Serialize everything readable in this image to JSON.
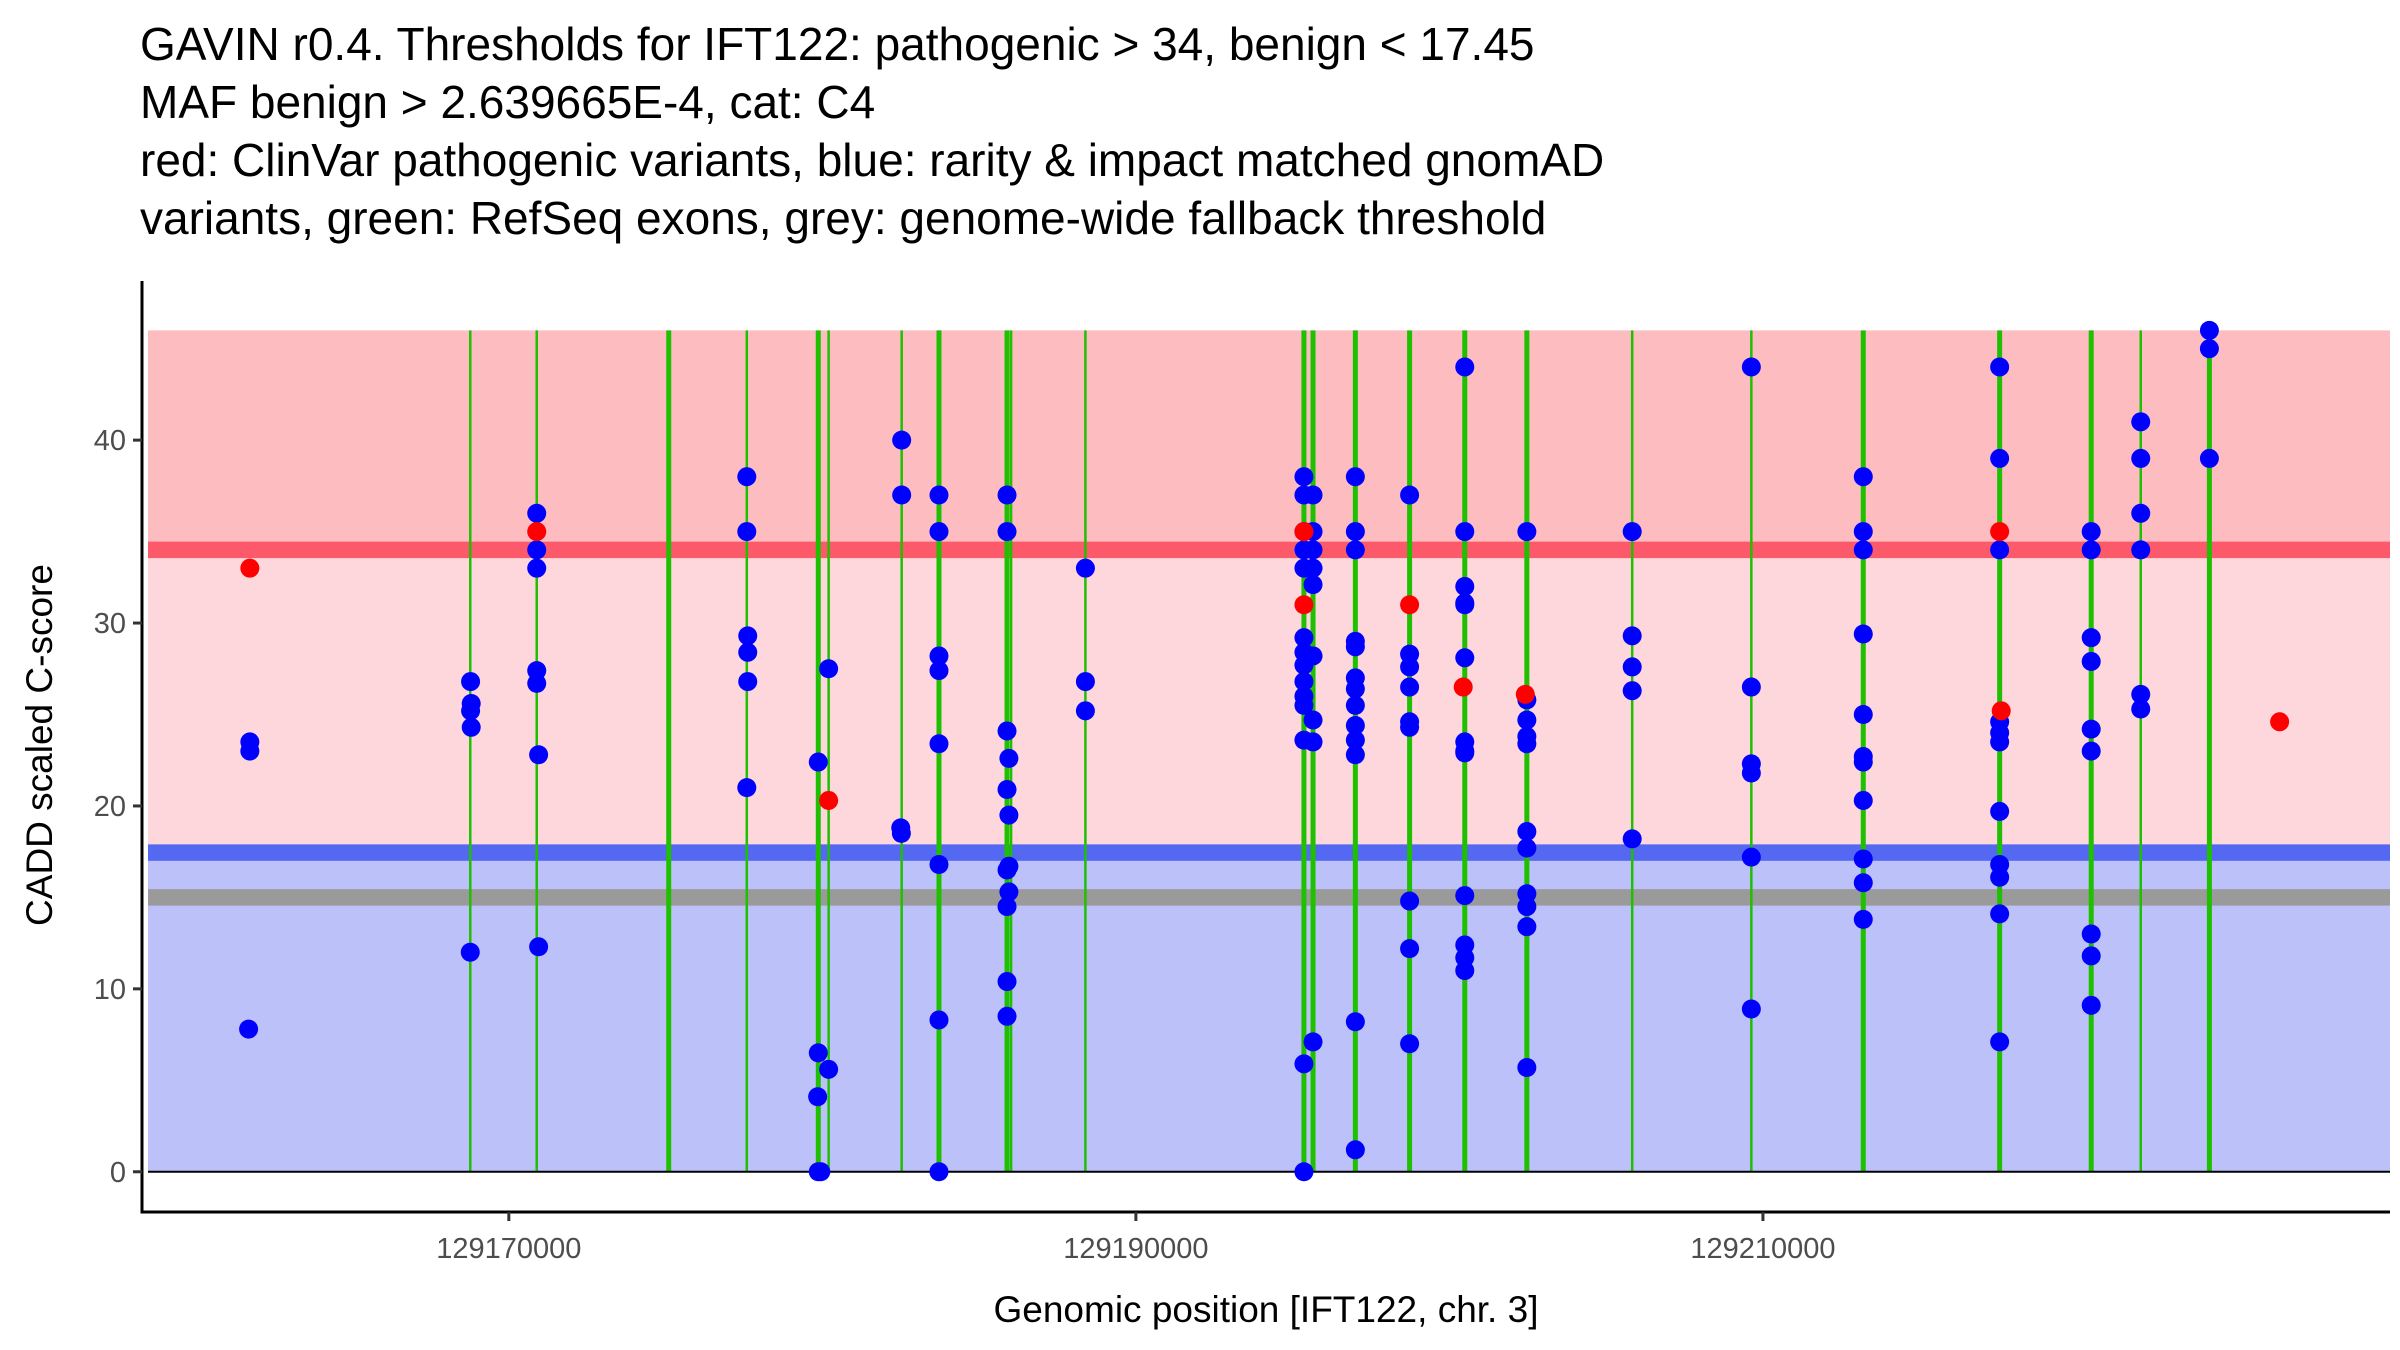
{
  "chart_data": {
    "type": "scatter",
    "title_lines": [
      "GAVIN r0.4. Thresholds for IFT122: pathogenic > 34, benign < 17.45",
      "MAF benign > 2.639665E-4, cat: C4",
      "red: ClinVar pathogenic variants, blue: rarity & impact matched gnomAD",
      "variants, green: RefSeq exons, grey: genome-wide fallback threshold"
    ],
    "xlabel": "Genomic position [IFT122, chr. 3]",
    "ylabel": "CADD scaled C-score",
    "xlim": [
      129158300,
      129230000
    ],
    "ylim": [
      -2.2,
      48.7
    ],
    "x_ticks": [
      129170000,
      129190000,
      129210000
    ],
    "x_tick_labels": [
      "129170000",
      "129190000",
      "129210000"
    ],
    "y_ticks": [
      0,
      10,
      20,
      30,
      40
    ],
    "y_tick_labels": [
      "0",
      "10",
      "20",
      "30",
      "40"
    ],
    "grid": false,
    "legend": "none",
    "colors": {
      "pathogenic_region": "#fcbcc0",
      "intermediate_region": "#fdd7db",
      "benign_region": "#bcc2f9",
      "pathogenic_threshold_line": "#fc5a6a",
      "benign_threshold_line": "#5468f2",
      "fallback_threshold_line": "#9a9a9a",
      "exon_line": "#1ec000",
      "clinvar_point": "#ff0000",
      "gnomad_point": "#0000ff"
    },
    "regions": [
      {
        "name": "pathogenic",
        "ymin": 34,
        "ymax": 46
      },
      {
        "name": "intermediate",
        "ymin": 17.45,
        "ymax": 34
      },
      {
        "name": "benign",
        "ymin": 0,
        "ymax": 17.45
      }
    ],
    "thresholds": {
      "pathogenic": 34,
      "benign": 17.45,
      "fallback": 15
    },
    "exons": [
      {
        "pos": 129168770,
        "thick": false
      },
      {
        "pos": 129170890,
        "thick": false
      },
      {
        "pos": 129175100,
        "thick": true
      },
      {
        "pos": 129177590,
        "thick": false
      },
      {
        "pos": 129179870,
        "thick": true
      },
      {
        "pos": 129180200,
        "thick": false
      },
      {
        "pos": 129182530,
        "thick": false
      },
      {
        "pos": 129183720,
        "thick": true
      },
      {
        "pos": 129185890,
        "thick": true
      },
      {
        "pos": 129186020,
        "thick": false
      },
      {
        "pos": 129188390,
        "thick": false
      },
      {
        "pos": 129195360,
        "thick": true
      },
      {
        "pos": 129195650,
        "thick": true
      },
      {
        "pos": 129197000,
        "thick": true
      },
      {
        "pos": 129198730,
        "thick": true
      },
      {
        "pos": 129200490,
        "thick": true
      },
      {
        "pos": 129202470,
        "thick": true
      },
      {
        "pos": 129205830,
        "thick": false
      },
      {
        "pos": 129209630,
        "thick": false
      },
      {
        "pos": 129213200,
        "thick": true
      },
      {
        "pos": 129217550,
        "thick": true
      },
      {
        "pos": 129220470,
        "thick": true
      },
      {
        "pos": 129222050,
        "thick": false
      },
      {
        "pos": 129224240,
        "thick": true
      }
    ],
    "series": [
      {
        "name": "ClinVar pathogenic variants",
        "color": "#ff0000",
        "points": [
          [
            129161740,
            33.0
          ],
          [
            129170890,
            35.0
          ],
          [
            129180200,
            20.3
          ],
          [
            129195360,
            35.0
          ],
          [
            129195360,
            31.0
          ],
          [
            129198730,
            31.0
          ],
          [
            129200440,
            26.5
          ],
          [
            129202420,
            26.1
          ],
          [
            129217550,
            35.0
          ],
          [
            129217600,
            25.2
          ],
          [
            129226480,
            24.6
          ]
        ]
      },
      {
        "name": "rarity & impact matched gnomAD variants",
        "color": "#0000ff",
        "points": [
          [
            129161740,
            23.5
          ],
          [
            129161740,
            23.0
          ],
          [
            129161700,
            7.8
          ],
          [
            129168780,
            26.8
          ],
          [
            129168800,
            25.6
          ],
          [
            129168780,
            25.2
          ],
          [
            129168800,
            24.3
          ],
          [
            129168770,
            12.0
          ],
          [
            129170890,
            36.0
          ],
          [
            129170890,
            34.0
          ],
          [
            129170890,
            33.0
          ],
          [
            129170890,
            27.4
          ],
          [
            129170890,
            26.7
          ],
          [
            129170950,
            22.8
          ],
          [
            129170950,
            12.3
          ],
          [
            129177590,
            38.0
          ],
          [
            129177590,
            35.0
          ],
          [
            129177620,
            29.3
          ],
          [
            129177620,
            28.4
          ],
          [
            129177620,
            26.8
          ],
          [
            129177590,
            21.0
          ],
          [
            129179870,
            22.4
          ],
          [
            129179870,
            6.5
          ],
          [
            129179850,
            4.1
          ],
          [
            129179870,
            0.0
          ],
          [
            129180200,
            27.5
          ],
          [
            129180200,
            5.6
          ],
          [
            129179950,
            0.0
          ],
          [
            129182530,
            40.0
          ],
          [
            129182530,
            37.0
          ],
          [
            129182500,
            18.8
          ],
          [
            129182520,
            18.5
          ],
          [
            129183720,
            37.0
          ],
          [
            129183720,
            35.0
          ],
          [
            129183720,
            28.2
          ],
          [
            129183720,
            27.4
          ],
          [
            129183720,
            23.4
          ],
          [
            129183720,
            16.8
          ],
          [
            129183720,
            8.3
          ],
          [
            129183720,
            0.0
          ],
          [
            129185890,
            37.0
          ],
          [
            129185890,
            35.0
          ],
          [
            129185890,
            24.1
          ],
          [
            129185950,
            22.6
          ],
          [
            129185890,
            20.9
          ],
          [
            129185950,
            19.5
          ],
          [
            129185950,
            16.7
          ],
          [
            129185890,
            16.5
          ],
          [
            129185950,
            15.3
          ],
          [
            129185890,
            14.5
          ],
          [
            129185890,
            10.4
          ],
          [
            129185890,
            8.5
          ],
          [
            129188390,
            33.0
          ],
          [
            129188390,
            26.8
          ],
          [
            129188390,
            25.2
          ],
          [
            129195360,
            38.0
          ],
          [
            129195360,
            37.0
          ],
          [
            129195360,
            35.0
          ],
          [
            129195360,
            34.0
          ],
          [
            129195360,
            33.0
          ],
          [
            129195360,
            29.2
          ],
          [
            129195360,
            28.4
          ],
          [
            129195360,
            27.7
          ],
          [
            129195360,
            26.8
          ],
          [
            129195360,
            26.0
          ],
          [
            129195360,
            25.5
          ],
          [
            129195360,
            23.6
          ],
          [
            129195360,
            5.9
          ],
          [
            129195360,
            0.0
          ],
          [
            129195650,
            37.0
          ],
          [
            129195650,
            35.0
          ],
          [
            129195650,
            34.0
          ],
          [
            129195650,
            33.0
          ],
          [
            129195650,
            32.1
          ],
          [
            129195650,
            28.2
          ],
          [
            129195650,
            24.7
          ],
          [
            129195650,
            23.5
          ],
          [
            129195650,
            7.1
          ],
          [
            129197000,
            38.0
          ],
          [
            129197000,
            35.0
          ],
          [
            129197000,
            34.0
          ],
          [
            129197000,
            29.0
          ],
          [
            129197000,
            28.7
          ],
          [
            129197000,
            27.0
          ],
          [
            129197000,
            26.4
          ],
          [
            129197000,
            25.5
          ],
          [
            129197000,
            24.4
          ],
          [
            129197000,
            23.6
          ],
          [
            129197000,
            22.8
          ],
          [
            129197000,
            8.2
          ],
          [
            129197000,
            1.2
          ],
          [
            129198730,
            37.0
          ],
          [
            129198730,
            28.3
          ],
          [
            129198730,
            27.6
          ],
          [
            129198730,
            26.5
          ],
          [
            129198730,
            24.6
          ],
          [
            129198730,
            24.3
          ],
          [
            129198730,
            14.8
          ],
          [
            129198730,
            12.2
          ],
          [
            129198730,
            7.0
          ],
          [
            129200490,
            44.0
          ],
          [
            129200490,
            35.0
          ],
          [
            129200490,
            32.0
          ],
          [
            129200490,
            31.1
          ],
          [
            129200490,
            31.0
          ],
          [
            129200490,
            28.1
          ],
          [
            129200490,
            23.5
          ],
          [
            129200490,
            23.0
          ],
          [
            129200490,
            22.9
          ],
          [
            129200490,
            15.1
          ],
          [
            129200490,
            12.4
          ],
          [
            129200490,
            11.7
          ],
          [
            129200490,
            11.0
          ],
          [
            129202470,
            35.0
          ],
          [
            129202470,
            25.8
          ],
          [
            129202470,
            24.7
          ],
          [
            129202470,
            23.8
          ],
          [
            129202470,
            23.4
          ],
          [
            129202470,
            18.6
          ],
          [
            129202470,
            17.7
          ],
          [
            129202470,
            15.2
          ],
          [
            129202470,
            14.5
          ],
          [
            129202470,
            13.4
          ],
          [
            129202470,
            5.7
          ],
          [
            129205830,
            35.0
          ],
          [
            129205830,
            29.3
          ],
          [
            129205830,
            27.6
          ],
          [
            129205830,
            26.3
          ],
          [
            129205830,
            18.2
          ],
          [
            129209630,
            44.0
          ],
          [
            129209630,
            26.5
          ],
          [
            129209630,
            22.3
          ],
          [
            129209630,
            21.8
          ],
          [
            129209630,
            17.2
          ],
          [
            129209630,
            8.9
          ],
          [
            129213200,
            38.0
          ],
          [
            129213200,
            35.0
          ],
          [
            129213200,
            34.0
          ],
          [
            129213200,
            29.4
          ],
          [
            129213200,
            25.0
          ],
          [
            129213200,
            22.7
          ],
          [
            129213200,
            22.4
          ],
          [
            129213200,
            20.3
          ],
          [
            129213200,
            17.1
          ],
          [
            129213200,
            15.8
          ],
          [
            129213200,
            13.8
          ],
          [
            129217550,
            44.0
          ],
          [
            129217550,
            39.0
          ],
          [
            129217550,
            34.0
          ],
          [
            129217550,
            24.6
          ],
          [
            129217550,
            24.0
          ],
          [
            129217550,
            23.5
          ],
          [
            129217550,
            19.7
          ],
          [
            129217550,
            16.8
          ],
          [
            129217550,
            16.1
          ],
          [
            129217550,
            14.1
          ],
          [
            129217550,
            7.1
          ],
          [
            129220470,
            35.0
          ],
          [
            129220470,
            34.0
          ],
          [
            129220470,
            29.2
          ],
          [
            129220470,
            27.9
          ],
          [
            129220470,
            24.2
          ],
          [
            129220470,
            23.0
          ],
          [
            129220470,
            13.0
          ],
          [
            129220470,
            11.8
          ],
          [
            129220470,
            9.1
          ],
          [
            129222050,
            41.0
          ],
          [
            129222050,
            39.0
          ],
          [
            129222050,
            36.0
          ],
          [
            129222050,
            34.0
          ],
          [
            129222050,
            26.1
          ],
          [
            129222050,
            25.3
          ],
          [
            129224240,
            46.0
          ],
          [
            129224240,
            45.0
          ],
          [
            129224240,
            39.0
          ]
        ]
      }
    ]
  }
}
